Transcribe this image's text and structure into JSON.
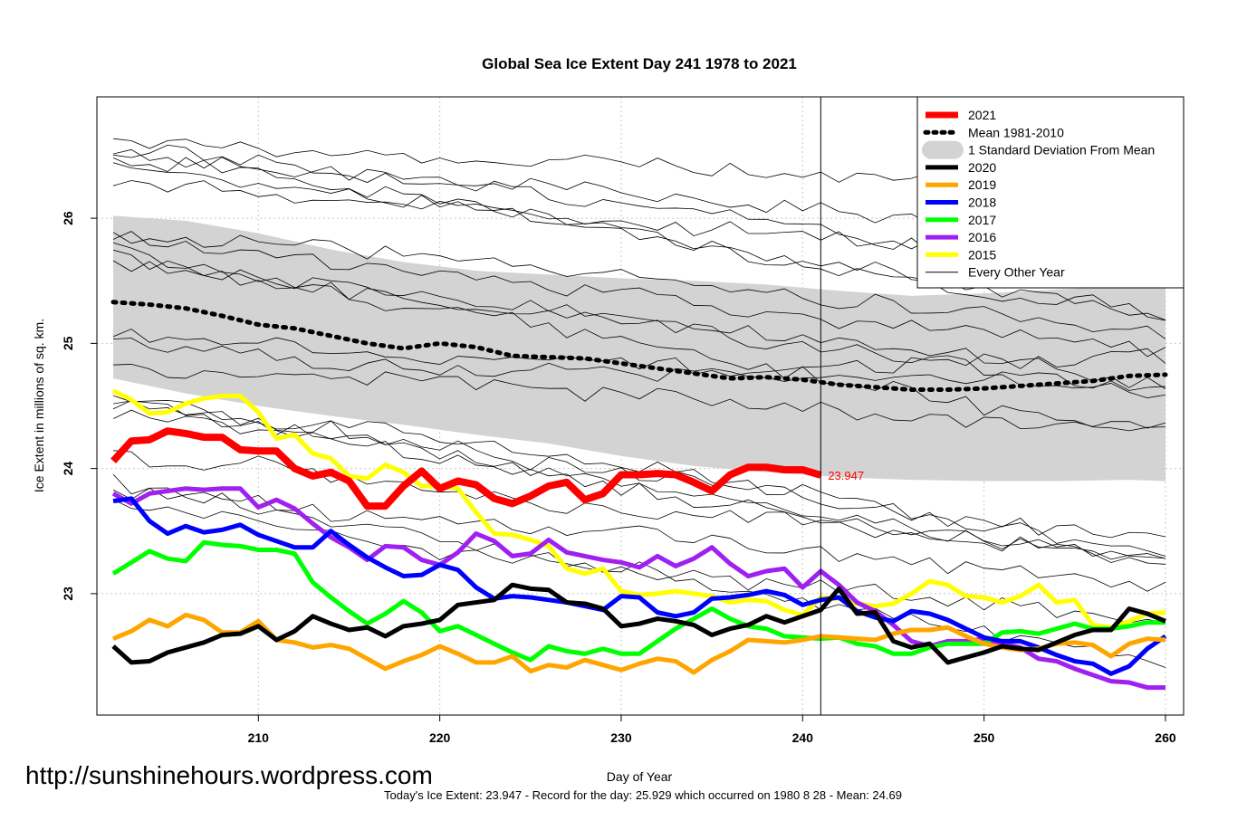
{
  "chart_data": {
    "type": "line",
    "title": "Global Sea Ice Extent Day 241 1978 to 2021",
    "xlabel": "Day of Year",
    "ylabel": "Ice Extent in millions of sq. km.",
    "xlim": [
      201.1,
      261
    ],
    "ylim": [
      22.03,
      26.97
    ],
    "x_ticks": [
      210,
      220,
      230,
      240,
      250,
      260
    ],
    "y_ticks": [
      23,
      24,
      25,
      26
    ],
    "grid": true,
    "current_day": 241,
    "end_label": "23.947",
    "watermark": "http://sunshinehours.wordpress.com",
    "footnote": "Today's Ice Extent: 23.947  - Record for the day: 25.929 which occurred on 1980 8 28  - Mean: 24.69",
    "legend": {
      "position": "top-right",
      "entries": [
        {
          "label": "2021",
          "color": "#ff0000",
          "style": "thick"
        },
        {
          "label": "Mean 1981-2010",
          "color": "#000000",
          "style": "dotted"
        },
        {
          "label": "1 Standard Deviation From Mean",
          "color": "#d3d3d3",
          "style": "band"
        },
        {
          "label": "2020",
          "color": "#000000",
          "style": "thick"
        },
        {
          "label": "2019",
          "color": "#ffa500",
          "style": "thick"
        },
        {
          "label": "2018",
          "color": "#0000ff",
          "style": "thick"
        },
        {
          "label": "2017",
          "color": "#00ff00",
          "style": "thick"
        },
        {
          "label": "2016",
          "color": "#a020f0",
          "style": "thick"
        },
        {
          "label": "2015",
          "color": "#ffff00",
          "style": "thick"
        },
        {
          "label": "Every Other Year",
          "color": "#000000",
          "style": "thin"
        }
      ]
    },
    "std_band": {
      "x": [
        202,
        206,
        210,
        214,
        218,
        222,
        226,
        230,
        234,
        238,
        242,
        246,
        250,
        254,
        258,
        260
      ],
      "upper": [
        26.02,
        25.98,
        25.88,
        25.75,
        25.65,
        25.58,
        25.55,
        25.52,
        25.5,
        25.47,
        25.42,
        25.38,
        25.4,
        25.43,
        25.46,
        25.45
      ],
      "lower": [
        24.72,
        24.6,
        24.5,
        24.42,
        24.35,
        24.27,
        24.2,
        24.1,
        24.02,
        23.97,
        23.93,
        23.91,
        23.9,
        23.9,
        23.91,
        23.9
      ]
    },
    "series": [
      {
        "name": "Mean 1981-2010",
        "color": "#000000",
        "width": 5,
        "dash": "3,7",
        "x": [
          202,
          204,
          206,
          208,
          210,
          212,
          214,
          216,
          218,
          220,
          222,
          224,
          226,
          228,
          230,
          232,
          234,
          236,
          238,
          240,
          242,
          244,
          246,
          248,
          250,
          252,
          254,
          256,
          258,
          260
        ],
        "values": [
          25.33,
          25.31,
          25.28,
          25.22,
          25.15,
          25.12,
          25.06,
          25.0,
          24.96,
          25.0,
          24.97,
          24.9,
          24.89,
          24.88,
          24.84,
          24.8,
          24.76,
          24.72,
          24.73,
          24.71,
          24.67,
          24.65,
          24.63,
          24.63,
          24.64,
          24.66,
          24.68,
          24.7,
          24.74,
          24.75
        ]
      },
      {
        "name": "2015",
        "color": "#ffff00",
        "width": 5,
        "x": [
          202,
          203,
          204,
          205,
          206,
          207,
          208,
          209,
          210,
          211,
          212,
          213,
          214,
          215,
          216,
          217,
          218,
          219,
          220,
          221,
          222,
          223,
          224,
          225,
          226,
          227,
          228,
          229,
          230,
          231,
          232,
          233,
          234,
          235,
          236,
          237,
          238,
          239,
          240,
          241,
          242,
          243,
          244,
          245,
          246,
          247,
          248,
          249,
          250,
          251,
          252,
          253,
          254,
          255,
          256,
          257,
          258,
          259,
          260
        ],
        "values": [
          24.62,
          24.55,
          24.44,
          24.45,
          24.52,
          24.56,
          24.58,
          24.58,
          24.45,
          24.24,
          24.27,
          24.12,
          24.08,
          23.94,
          23.92,
          24.03,
          23.97,
          23.86,
          23.86,
          23.84,
          23.65,
          23.48,
          23.47,
          23.43,
          23.38,
          23.2,
          23.16,
          23.2,
          23.02,
          22.99,
          23.0,
          23.02,
          23.0,
          22.98,
          22.93,
          22.95,
          22.94,
          22.87,
          22.83,
          22.97,
          22.96,
          22.92,
          22.9,
          22.92,
          23.0,
          23.1,
          23.07,
          22.98,
          22.97,
          22.93,
          22.98,
          23.07,
          22.93,
          22.95,
          22.75,
          22.73,
          22.78,
          22.84,
          22.85
        ]
      },
      {
        "name": "2016",
        "color": "#a020f0",
        "width": 5,
        "x": [
          202,
          203,
          204,
          205,
          206,
          207,
          208,
          209,
          210,
          211,
          212,
          213,
          214,
          215,
          216,
          217,
          218,
          219,
          220,
          221,
          222,
          223,
          224,
          225,
          226,
          227,
          228,
          229,
          230,
          231,
          232,
          233,
          234,
          235,
          236,
          237,
          238,
          239,
          240,
          241,
          242,
          243,
          244,
          245,
          246,
          247,
          248,
          249,
          250,
          251,
          252,
          253,
          254,
          255,
          256,
          257,
          258,
          259,
          260
        ],
        "values": [
          23.8,
          23.72,
          23.8,
          23.82,
          23.84,
          23.83,
          23.84,
          23.84,
          23.69,
          23.75,
          23.68,
          23.56,
          23.45,
          23.37,
          23.27,
          23.38,
          23.37,
          23.27,
          23.23,
          23.33,
          23.48,
          23.42,
          23.3,
          23.32,
          23.43,
          23.33,
          23.3,
          23.27,
          23.25,
          23.21,
          23.3,
          23.22,
          23.28,
          23.37,
          23.24,
          23.14,
          23.18,
          23.2,
          23.05,
          23.18,
          23.07,
          22.93,
          22.86,
          22.75,
          22.62,
          22.58,
          22.62,
          22.62,
          22.64,
          22.6,
          22.57,
          22.48,
          22.46,
          22.4,
          22.35,
          22.3,
          22.29,
          22.25,
          22.25
        ]
      },
      {
        "name": "2017",
        "color": "#00ff00",
        "width": 5,
        "x": [
          202,
          203,
          204,
          205,
          206,
          207,
          208,
          209,
          210,
          211,
          212,
          213,
          214,
          215,
          216,
          217,
          218,
          219,
          220,
          221,
          222,
          223,
          224,
          225,
          226,
          227,
          228,
          229,
          230,
          231,
          232,
          233,
          234,
          235,
          236,
          237,
          238,
          239,
          240,
          241,
          242,
          243,
          244,
          245,
          246,
          247,
          248,
          249,
          250,
          251,
          252,
          253,
          254,
          255,
          256,
          257,
          258,
          259,
          260
        ],
        "values": [
          23.16,
          23.25,
          23.34,
          23.28,
          23.26,
          23.41,
          23.39,
          23.38,
          23.35,
          23.35,
          23.32,
          23.09,
          22.97,
          22.86,
          22.76,
          22.84,
          22.94,
          22.85,
          22.7,
          22.74,
          22.67,
          22.6,
          22.53,
          22.47,
          22.58,
          22.54,
          22.52,
          22.56,
          22.52,
          22.52,
          22.62,
          22.72,
          22.8,
          22.88,
          22.8,
          22.74,
          22.72,
          22.66,
          22.65,
          22.64,
          22.65,
          22.6,
          22.58,
          22.52,
          22.52,
          22.57,
          22.6,
          22.6,
          22.6,
          22.69,
          22.7,
          22.68,
          22.72,
          22.76,
          22.72,
          22.72,
          22.74,
          22.77,
          22.77
        ]
      },
      {
        "name": "2018",
        "color": "#0000ff",
        "width": 5,
        "x": [
          202,
          203,
          204,
          205,
          206,
          207,
          208,
          209,
          210,
          211,
          212,
          213,
          214,
          215,
          216,
          217,
          218,
          219,
          220,
          221,
          222,
          223,
          224,
          225,
          226,
          227,
          228,
          229,
          230,
          231,
          232,
          233,
          234,
          235,
          236,
          237,
          238,
          239,
          240,
          241,
          242,
          243,
          244,
          245,
          246,
          247,
          248,
          249,
          250,
          251,
          252,
          253,
          254,
          255,
          256,
          257,
          258,
          259,
          260
        ],
        "values": [
          23.74,
          23.76,
          23.58,
          23.48,
          23.54,
          23.49,
          23.51,
          23.55,
          23.47,
          23.42,
          23.37,
          23.37,
          23.5,
          23.39,
          23.29,
          23.21,
          23.14,
          23.15,
          23.23,
          23.19,
          23.05,
          22.96,
          22.98,
          22.97,
          22.95,
          22.93,
          22.9,
          22.87,
          22.98,
          22.97,
          22.85,
          22.82,
          22.85,
          22.96,
          22.97,
          22.99,
          23.02,
          22.99,
          22.91,
          22.95,
          22.97,
          22.86,
          22.81,
          22.78,
          22.86,
          22.84,
          22.79,
          22.72,
          22.65,
          22.62,
          22.62,
          22.57,
          22.51,
          22.46,
          22.44,
          22.36,
          22.42,
          22.56,
          22.66
        ]
      },
      {
        "name": "2019",
        "color": "#ffa500",
        "width": 5,
        "x": [
          202,
          203,
          204,
          205,
          206,
          207,
          208,
          209,
          210,
          211,
          212,
          213,
          214,
          215,
          216,
          217,
          218,
          219,
          220,
          221,
          222,
          223,
          224,
          225,
          226,
          227,
          228,
          229,
          230,
          231,
          232,
          233,
          234,
          235,
          236,
          237,
          238,
          239,
          240,
          241,
          242,
          243,
          244,
          245,
          246,
          247,
          248,
          249,
          250,
          251,
          252,
          253,
          254,
          255,
          256,
          257,
          258,
          259,
          260
        ],
        "values": [
          22.64,
          22.7,
          22.79,
          22.74,
          22.83,
          22.79,
          22.69,
          22.69,
          22.78,
          22.63,
          22.61,
          22.57,
          22.59,
          22.56,
          22.48,
          22.4,
          22.46,
          22.51,
          22.58,
          22.52,
          22.45,
          22.45,
          22.5,
          22.38,
          22.43,
          22.41,
          22.47,
          22.43,
          22.39,
          22.44,
          22.48,
          22.46,
          22.37,
          22.47,
          22.54,
          22.63,
          22.62,
          22.61,
          22.63,
          22.66,
          22.65,
          22.64,
          22.63,
          22.68,
          22.71,
          22.71,
          22.73,
          22.66,
          22.6,
          22.57,
          22.55,
          22.56,
          22.6,
          22.61,
          22.59,
          22.5,
          22.6,
          22.64,
          22.63
        ]
      },
      {
        "name": "2020",
        "color": "#000000",
        "width": 5,
        "x": [
          202,
          203,
          204,
          205,
          206,
          207,
          208,
          209,
          210,
          211,
          212,
          213,
          214,
          215,
          216,
          217,
          218,
          219,
          220,
          221,
          222,
          223,
          224,
          225,
          226,
          227,
          228,
          229,
          230,
          231,
          232,
          233,
          234,
          235,
          236,
          237,
          238,
          239,
          240,
          241,
          242,
          243,
          244,
          245,
          246,
          247,
          248,
          249,
          250,
          251,
          252,
          253,
          254,
          255,
          256,
          257,
          258,
          259,
          260
        ],
        "values": [
          22.58,
          22.45,
          22.46,
          22.53,
          22.57,
          22.61,
          22.67,
          22.68,
          22.74,
          22.63,
          22.7,
          22.82,
          22.76,
          22.71,
          22.73,
          22.66,
          22.74,
          22.76,
          22.79,
          22.91,
          22.93,
          22.95,
          23.07,
          23.04,
          23.03,
          22.93,
          22.92,
          22.88,
          22.74,
          22.76,
          22.8,
          22.78,
          22.75,
          22.67,
          22.72,
          22.75,
          22.82,
          22.77,
          22.82,
          22.87,
          23.04,
          22.84,
          22.85,
          22.62,
          22.57,
          22.6,
          22.45,
          22.49,
          22.53,
          22.58,
          22.56,
          22.55,
          22.61,
          22.67,
          22.71,
          22.71,
          22.88,
          22.84,
          22.78
        ]
      },
      {
        "name": "2021",
        "color": "#ff0000",
        "width": 8,
        "x": [
          202,
          203,
          204,
          205,
          206,
          207,
          208,
          209,
          210,
          211,
          212,
          213,
          214,
          215,
          216,
          217,
          218,
          219,
          220,
          221,
          222,
          223,
          224,
          225,
          226,
          227,
          228,
          229,
          230,
          231,
          232,
          233,
          234,
          235,
          236,
          237,
          238,
          239,
          240,
          241
        ],
        "values": [
          24.06,
          24.22,
          24.23,
          24.3,
          24.28,
          24.25,
          24.25,
          24.15,
          24.14,
          24.14,
          24.0,
          23.94,
          23.97,
          23.9,
          23.7,
          23.7,
          23.86,
          23.98,
          23.84,
          23.9,
          23.87,
          23.76,
          23.72,
          23.78,
          23.86,
          23.89,
          23.75,
          23.8,
          23.95,
          23.95,
          23.96,
          23.95,
          23.89,
          23.82,
          23.95,
          24.01,
          24.01,
          23.99,
          23.99,
          23.947
        ]
      }
    ]
  }
}
